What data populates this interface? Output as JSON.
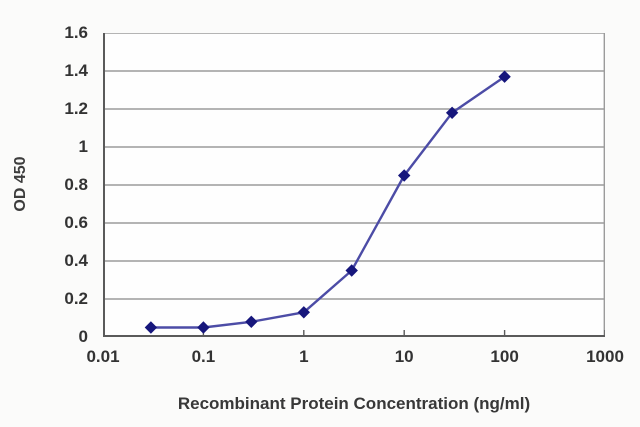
{
  "chart_data": {
    "type": "line",
    "x": [
      0.03,
      0.1,
      0.3,
      1,
      3,
      10,
      30,
      100
    ],
    "values": [
      0.05,
      0.05,
      0.08,
      0.13,
      0.35,
      0.85,
      1.18,
      1.37
    ],
    "title": "",
    "xlabel": "Recombinant Protein Concentration (ng/ml)",
    "ylabel": "OD 450",
    "x_scale": "log",
    "xlim": [
      0.01,
      1000
    ],
    "ylim": [
      0,
      1.6
    ],
    "x_tick_labels": [
      "0.01",
      "0.1",
      "1",
      "10",
      "100",
      "1000"
    ],
    "x_ticks": [
      0.01,
      0.1,
      1,
      10,
      100,
      1000
    ],
    "y_tick_labels": [
      "0",
      "0.2",
      "0.4",
      "0.6",
      "0.8",
      "1",
      "1.2",
      "1.4",
      "1.6"
    ],
    "y_ticks": [
      0,
      0.2,
      0.4,
      0.6,
      0.8,
      1,
      1.2,
      1.4,
      1.6
    ],
    "grid": "horizontal",
    "legend": "none",
    "marker": "diamond",
    "colors": {
      "line": "#4c4ca6",
      "marker": "#17177c",
      "grid": "#9b9b9b",
      "axis": "#5a5a5a",
      "text": "#333333"
    }
  }
}
